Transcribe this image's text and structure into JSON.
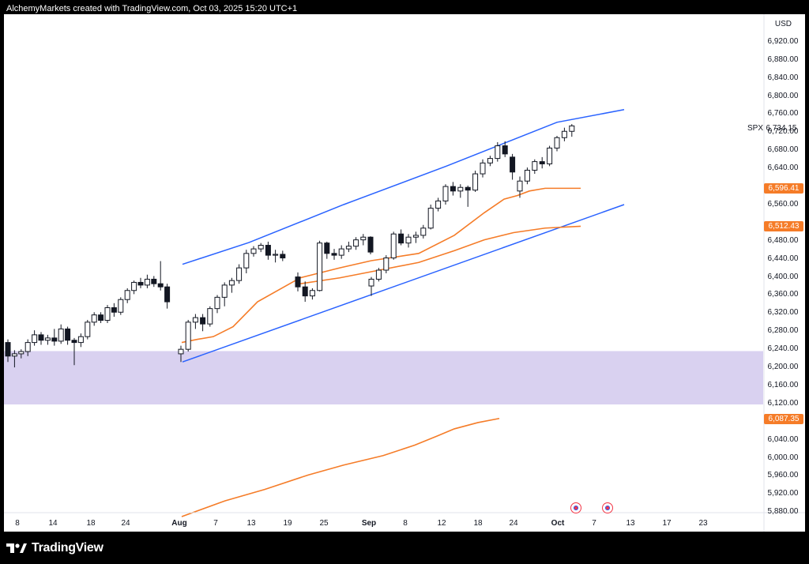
{
  "header": {
    "text": "AlchemyMarkets created with TradingView.com, Oct 03, 2025 15:20 UTC+1"
  },
  "footer": {
    "brand": "TradingView"
  },
  "colors": {
    "bull": "#ffffff",
    "bear": "#131722",
    "channel": "#2962ff",
    "ma": "#f57c28",
    "zone": "#d9d1f0"
  },
  "chart_data": {
    "type": "candlestick",
    "symbol": "SPX",
    "currency": "USD",
    "last_price_label": "6,734.15",
    "ylim": [
      5870,
      6960
    ],
    "y_ticks": [
      {
        "v": 6920,
        "label": "6,920.00"
      },
      {
        "v": 6880,
        "label": "6,880.00"
      },
      {
        "v": 6840,
        "label": "6,840.00"
      },
      {
        "v": 6800,
        "label": "6,800.00"
      },
      {
        "v": 6760,
        "label": "6,760.00"
      },
      {
        "v": 6720,
        "label": "6,720.00"
      },
      {
        "v": 6680,
        "label": "6,680.00"
      },
      {
        "v": 6640,
        "label": "6,640.00"
      },
      {
        "v": 6560,
        "label": "6,560.00"
      },
      {
        "v": 6480,
        "label": "6,480.00"
      },
      {
        "v": 6440,
        "label": "6,440.00"
      },
      {
        "v": 6400,
        "label": "6,400.00"
      },
      {
        "v": 6360,
        "label": "6,360.00"
      },
      {
        "v": 6320,
        "label": "6,320.00"
      },
      {
        "v": 6280,
        "label": "6,280.00"
      },
      {
        "v": 6240,
        "label": "6,240.00"
      },
      {
        "v": 6200,
        "label": "6,200.00"
      },
      {
        "v": 6160,
        "label": "6,160.00"
      },
      {
        "v": 6120,
        "label": "6,120.00"
      },
      {
        "v": 6040,
        "label": "6,040.00"
      },
      {
        "v": 6000,
        "label": "6,000.00"
      },
      {
        "v": 5960,
        "label": "5,960.00"
      },
      {
        "v": 5920,
        "label": "5,920.00"
      },
      {
        "v": 5880,
        "label": "5,880.00"
      }
    ],
    "x_ticks": [
      {
        "label": "8",
        "bold": false
      },
      {
        "label": "14",
        "bold": false
      },
      {
        "label": "18",
        "bold": false
      },
      {
        "label": "24",
        "bold": false
      },
      {
        "label": "Aug",
        "bold": true
      },
      {
        "label": "7",
        "bold": false
      },
      {
        "label": "13",
        "bold": false
      },
      {
        "label": "19",
        "bold": false
      },
      {
        "label": "25",
        "bold": false
      },
      {
        "label": "Sep",
        "bold": true
      },
      {
        "label": "8",
        "bold": false
      },
      {
        "label": "12",
        "bold": false
      },
      {
        "label": "18",
        "bold": false
      },
      {
        "label": "24",
        "bold": false
      },
      {
        "label": "Oct",
        "bold": true
      },
      {
        "label": "7",
        "bold": false
      },
      {
        "label": "13",
        "bold": false
      },
      {
        "label": "17",
        "bold": false
      },
      {
        "label": "23",
        "bold": false
      }
    ],
    "price_tags": [
      {
        "label": "6,596.41",
        "v": 6596.41
      },
      {
        "label": "6,512.43",
        "v": 6512.43
      },
      {
        "label": "6,087.35",
        "v": 6087.35
      }
    ],
    "zone": {
      "from": 6118,
      "to": 6236
    },
    "candles": [
      [
        6255,
        6262,
        6212,
        6225
      ],
      [
        6225,
        6238,
        6200,
        6230
      ],
      [
        6230,
        6240,
        6220,
        6235
      ],
      [
        6235,
        6262,
        6225,
        6255
      ],
      [
        6255,
        6282,
        6248,
        6272
      ],
      [
        6272,
        6278,
        6250,
        6260
      ],
      [
        6260,
        6272,
        6250,
        6265
      ],
      [
        6265,
        6285,
        6248,
        6258
      ],
      [
        6258,
        6295,
        6252,
        6285
      ],
      [
        6285,
        6290,
        6250,
        6260
      ],
      [
        6260,
        6265,
        6205,
        6255
      ],
      [
        6255,
        6275,
        6245,
        6268
      ],
      [
        6268,
        6305,
        6262,
        6300
      ],
      [
        6300,
        6322,
        6292,
        6316
      ],
      [
        6316,
        6322,
        6298,
        6304
      ],
      [
        6304,
        6338,
        6298,
        6332
      ],
      [
        6332,
        6342,
        6312,
        6322
      ],
      [
        6322,
        6355,
        6316,
        6350
      ],
      [
        6350,
        6375,
        6342,
        6370
      ],
      [
        6370,
        6392,
        6362,
        6388
      ],
      [
        6388,
        6398,
        6375,
        6382
      ],
      [
        6382,
        6405,
        6375,
        6395
      ],
      [
        6395,
        6402,
        6378,
        6385
      ],
      [
        6385,
        6435,
        6370,
        6378
      ],
      [
        6378,
        6385,
        6330,
        6345
      ],
      [
        6230,
        6248,
        6212,
        6240
      ],
      [
        6240,
        6305,
        6235,
        6300
      ],
      [
        6300,
        6318,
        6285,
        6310
      ],
      [
        6310,
        6318,
        6280,
        6296
      ],
      [
        6296,
        6335,
        6290,
        6330
      ],
      [
        6330,
        6360,
        6320,
        6355
      ],
      [
        6355,
        6388,
        6335,
        6382
      ],
      [
        6382,
        6398,
        6365,
        6392
      ],
      [
        6392,
        6428,
        6385,
        6420
      ],
      [
        6420,
        6460,
        6408,
        6452
      ],
      [
        6452,
        6468,
        6445,
        6462
      ],
      [
        6462,
        6475,
        6455,
        6470
      ],
      [
        6470,
        6478,
        6438,
        6448
      ],
      [
        6448,
        6460,
        6432,
        6450
      ],
      [
        6450,
        6458,
        6435,
        6442
      ],
      [
        6400,
        6410,
        6368,
        6378
      ],
      [
        6378,
        6390,
        6345,
        6358
      ],
      [
        6358,
        6375,
        6350,
        6370
      ],
      [
        6370,
        6480,
        6368,
        6475
      ],
      [
        6475,
        6478,
        6440,
        6452
      ],
      [
        6452,
        6462,
        6438,
        6448
      ],
      [
        6448,
        6470,
        6440,
        6462
      ],
      [
        6462,
        6478,
        6455,
        6468
      ],
      [
        6468,
        6488,
        6460,
        6482
      ],
      [
        6482,
        6495,
        6470,
        6488
      ],
      [
        6488,
        6490,
        6450,
        6455
      ],
      [
        6380,
        6400,
        6358,
        6395
      ],
      [
        6395,
        6420,
        6390,
        6415
      ],
      [
        6415,
        6448,
        6408,
        6442
      ],
      [
        6442,
        6500,
        6438,
        6495
      ],
      [
        6495,
        6505,
        6470,
        6475
      ],
      [
        6475,
        6495,
        6465,
        6488
      ],
      [
        6488,
        6500,
        6475,
        6492
      ],
      [
        6492,
        6515,
        6485,
        6508
      ],
      [
        6508,
        6560,
        6505,
        6552
      ],
      [
        6552,
        6575,
        6545,
        6568
      ],
      [
        6568,
        6605,
        6560,
        6600
      ],
      [
        6600,
        6610,
        6580,
        6590
      ],
      [
        6590,
        6605,
        6575,
        6598
      ],
      [
        6598,
        6602,
        6555,
        6592
      ],
      [
        6592,
        6635,
        6588,
        6628
      ],
      [
        6628,
        6660,
        6620,
        6652
      ],
      [
        6652,
        6668,
        6645,
        6662
      ],
      [
        6662,
        6698,
        6655,
        6690
      ],
      [
        6690,
        6700,
        6665,
        6672
      ],
      [
        6665,
        6672,
        6615,
        6632
      ],
      [
        6590,
        6622,
        6575,
        6612
      ],
      [
        6612,
        6642,
        6605,
        6636
      ],
      [
        6636,
        6660,
        6628,
        6655
      ],
      [
        6655,
        6665,
        6640,
        6650
      ],
      [
        6650,
        6690,
        6645,
        6685
      ],
      [
        6685,
        6712,
        6678,
        6708
      ],
      [
        6708,
        6730,
        6700,
        6722
      ],
      [
        6722,
        6738,
        6710,
        6734
      ]
    ],
    "ma_short": [
      [
        0,
        6255
      ],
      [
        20,
        6262
      ],
      [
        40,
        6268
      ],
      [
        65,
        6290
      ],
      [
        96,
        6345
      ],
      [
        150,
        6398
      ],
      [
        200,
        6420
      ],
      [
        240,
        6436
      ],
      [
        300,
        6452
      ],
      [
        345,
        6492
      ],
      [
        383,
        6542
      ],
      [
        408,
        6572
      ],
      [
        425,
        6580
      ],
      [
        440,
        6590
      ],
      [
        460,
        6596
      ],
      [
        505,
        6596
      ]
    ],
    "ma_long": [
      [
        150,
        6385
      ],
      [
        200,
        6398
      ],
      [
        250,
        6415
      ],
      [
        300,
        6432
      ],
      [
        345,
        6458
      ],
      [
        383,
        6482
      ],
      [
        420,
        6498
      ],
      [
        460,
        6508
      ],
      [
        505,
        6512
      ]
    ],
    "ma_200": [
      [
        225,
        5870
      ],
      [
        280,
        5905
      ],
      [
        330,
        5930
      ],
      [
        385,
        5962
      ],
      [
        430,
        5984
      ],
      [
        480,
        6005
      ],
      [
        520,
        6028
      ],
      [
        548,
        6048
      ],
      [
        570,
        6064
      ],
      [
        600,
        6078
      ],
      [
        627,
        6087
      ]
    ],
    "channel_upper": [
      [
        226,
        6428
      ],
      [
        310,
        6476
      ],
      [
        430,
        6560
      ],
      [
        560,
        6645
      ],
      [
        700,
        6742
      ],
      [
        785,
        6770
      ]
    ],
    "channel_lower": [
      [
        226,
        6212
      ],
      [
        785,
        6560
      ]
    ]
  }
}
